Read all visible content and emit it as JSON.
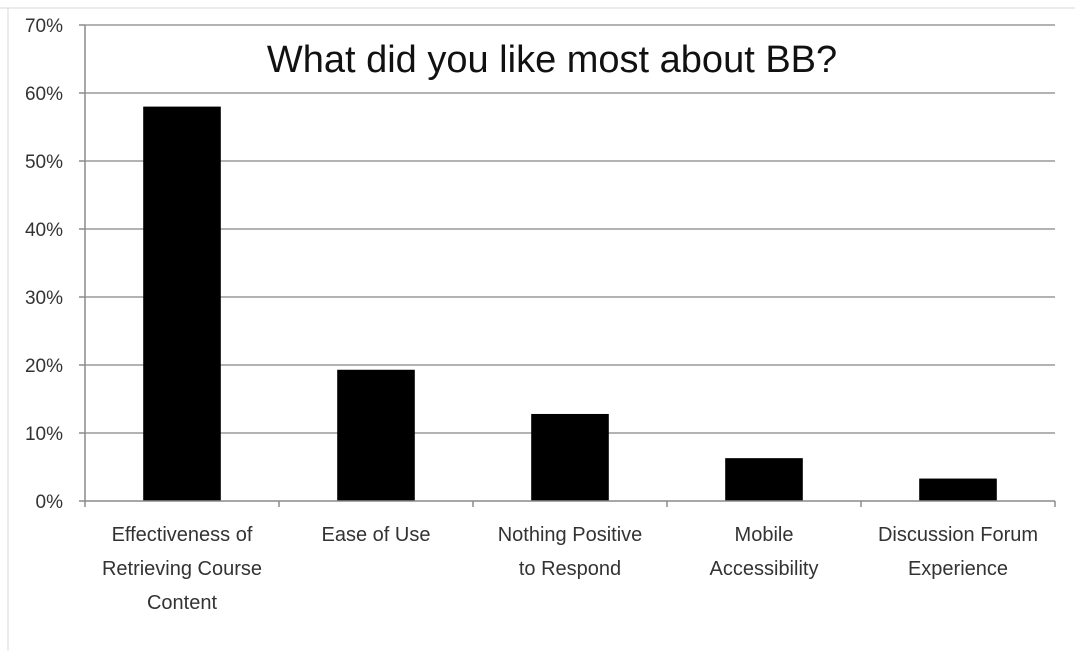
{
  "chart_data": {
    "type": "bar",
    "title": "What did you like most about BB?",
    "xlabel": "",
    "ylabel": "",
    "categories": [
      [
        "Effectiveness of",
        "Retrieving Course",
        "Content"
      ],
      [
        "Ease of Use"
      ],
      [
        "Nothing Positive",
        "to Respond"
      ],
      [
        "Mobile",
        "Accessibility"
      ],
      [
        "Discussion Forum",
        "Experience"
      ]
    ],
    "values": [
      58,
      19.3,
      12.8,
      6.3,
      3.3
    ],
    "ylim": [
      0,
      70
    ],
    "yticks": [
      0,
      10,
      20,
      30,
      40,
      50,
      60,
      70
    ],
    "ytick_labels": [
      "0%",
      "10%",
      "20%",
      "30%",
      "40%",
      "50%",
      "60%",
      "70%"
    ],
    "grid": true,
    "legend": "none",
    "colors": {
      "bar": "#000000",
      "grid": "#9a9a9a",
      "axis": "#8a8a8a",
      "text": "#333333"
    }
  }
}
